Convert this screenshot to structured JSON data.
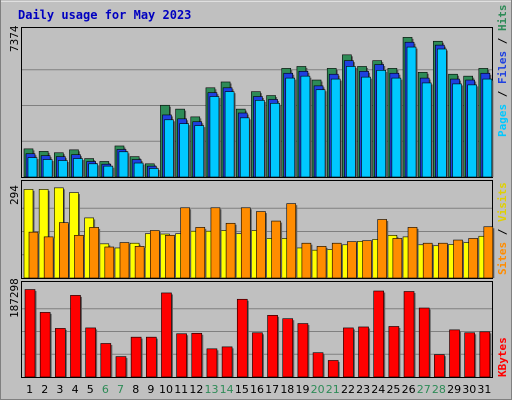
{
  "chart_data": {
    "type": "bar",
    "title": "Daily usage for May 2023",
    "x": [
      "1",
      "2",
      "3",
      "4",
      "5",
      "6",
      "7",
      "8",
      "9",
      "10",
      "11",
      "12",
      "13",
      "14",
      "15",
      "16",
      "17",
      "18",
      "19",
      "20",
      "21",
      "22",
      "23",
      "24",
      "25",
      "26",
      "27",
      "28",
      "29",
      "30",
      "31"
    ],
    "weekend_days": [
      "6",
      "7",
      "13",
      "14",
      "20",
      "21",
      "27",
      "28"
    ],
    "panels": [
      {
        "name": "traffic",
        "max_label": "7374",
        "ymax": 7374,
        "series": [
          {
            "name": "Hits",
            "color": "#2e8b57",
            "values": [
              1450,
              1320,
              1250,
              1400,
              950,
              800,
              1600,
              1050,
              680,
              3700,
              3500,
              3100,
              4600,
              4900,
              3500,
              4400,
              4200,
              5600,
              5700,
              5000,
              5600,
              6300,
              5700,
              6000,
              5600,
              7200,
              5400,
              7000,
              5300,
              5200,
              5600
            ]
          },
          {
            "name": "Files",
            "color": "#1e40e0",
            "values": [
              1200,
              1100,
              1050,
              1150,
              800,
              660,
              1420,
              900,
              560,
              3200,
              3000,
              2850,
              4350,
              4600,
              3300,
              4150,
              4000,
              5350,
              5450,
              4700,
              5300,
              6000,
              5450,
              5800,
              5350,
              6950,
              5100,
              6800,
              5050,
              5000,
              5350
            ]
          },
          {
            "name": "Pages",
            "color": "#00c8ff",
            "values": [
              1000,
              900,
              850,
              950,
              680,
              560,
              1300,
              720,
              440,
              2950,
              2750,
              2650,
              4150,
              4400,
              3050,
              3950,
              3800,
              5100,
              5200,
              4500,
              5050,
              5700,
              5150,
              5500,
              5100,
              6700,
              4850,
              6600,
              4800,
              4750,
              5050
            ]
          }
        ]
      },
      {
        "name": "visits",
        "max_label": "294",
        "ymax": 294,
        "series": [
          {
            "name": "Visits",
            "color": "#ffff00",
            "values": [
              280,
              280,
              285,
              270,
              190,
              108,
              95,
              110,
              140,
              139,
              140,
              148,
              148,
              150,
              140,
              150,
              125,
              125,
              95,
              88,
              90,
              105,
              116,
              122,
              135,
              130,
              105,
              102,
              106,
              112,
              132
            ]
          },
          {
            "name": "Sites",
            "color": "#ff8c00",
            "values": [
              145,
              130,
              175,
              135,
              160,
              98,
              112,
              100,
              150,
              135,
              222,
              160,
              222,
              173,
              222,
              210,
              180,
              235,
              110,
              100,
              110,
              115,
              118,
              185,
              125,
              160,
              110,
              110,
              120,
              125,
              162
            ]
          }
        ]
      },
      {
        "name": "kbytes",
        "max_label": "187298",
        "ymax": 187298,
        "series": [
          {
            "name": "KBytes",
            "color": "#ff0000",
            "values": [
              180000,
              133000,
              100000,
              168000,
              101000,
              69000,
              42000,
              82000,
              82000,
              173000,
              89000,
              90000,
              58000,
              62000,
              160000,
              91000,
              127000,
              120000,
              110000,
              50000,
              34000,
              101000,
              103000,
              177000,
              104000,
              176000,
              142000,
              46000,
              97000,
              91000,
              93000
            ]
          }
        ]
      }
    ]
  }
}
